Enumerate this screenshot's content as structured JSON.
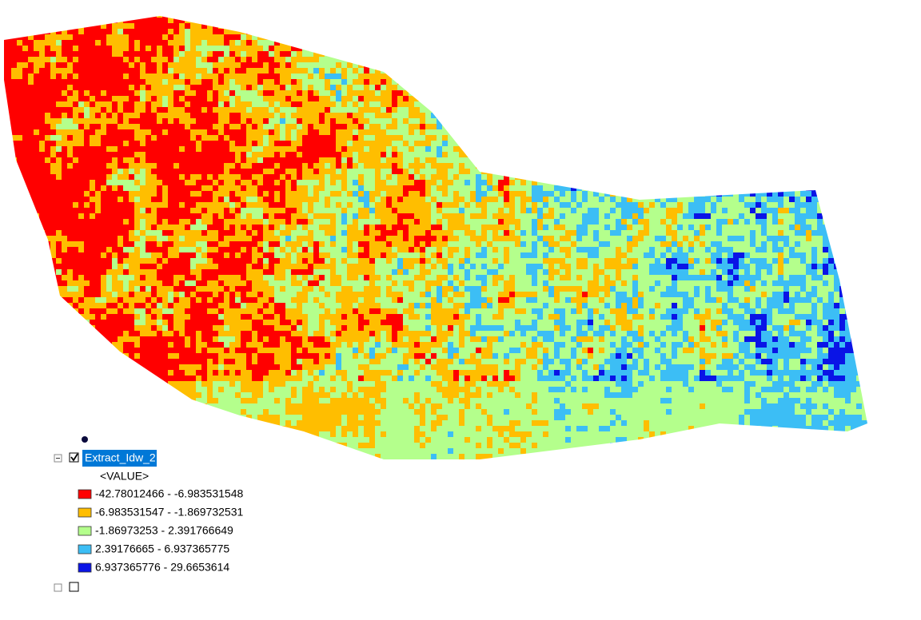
{
  "toc": {
    "layer": {
      "name": "Extract_Idw_2",
      "checked": true,
      "field": "<VALUE>",
      "classes": [
        {
          "label": "-42.78012466 - -6.983531548",
          "color": "#ff0000"
        },
        {
          "label": "-6.983531547 - -1.869732531",
          "color": "#ffbe00"
        },
        {
          "label": "-1.86973253 - 2.391766649",
          "color": "#b4ff8c"
        },
        {
          "label": "2.39176665 - 6.937365775",
          "color": "#3cbef5"
        },
        {
          "label": "6.937365776 - 29.6653614",
          "color": "#0a14e6"
        }
      ]
    }
  }
}
